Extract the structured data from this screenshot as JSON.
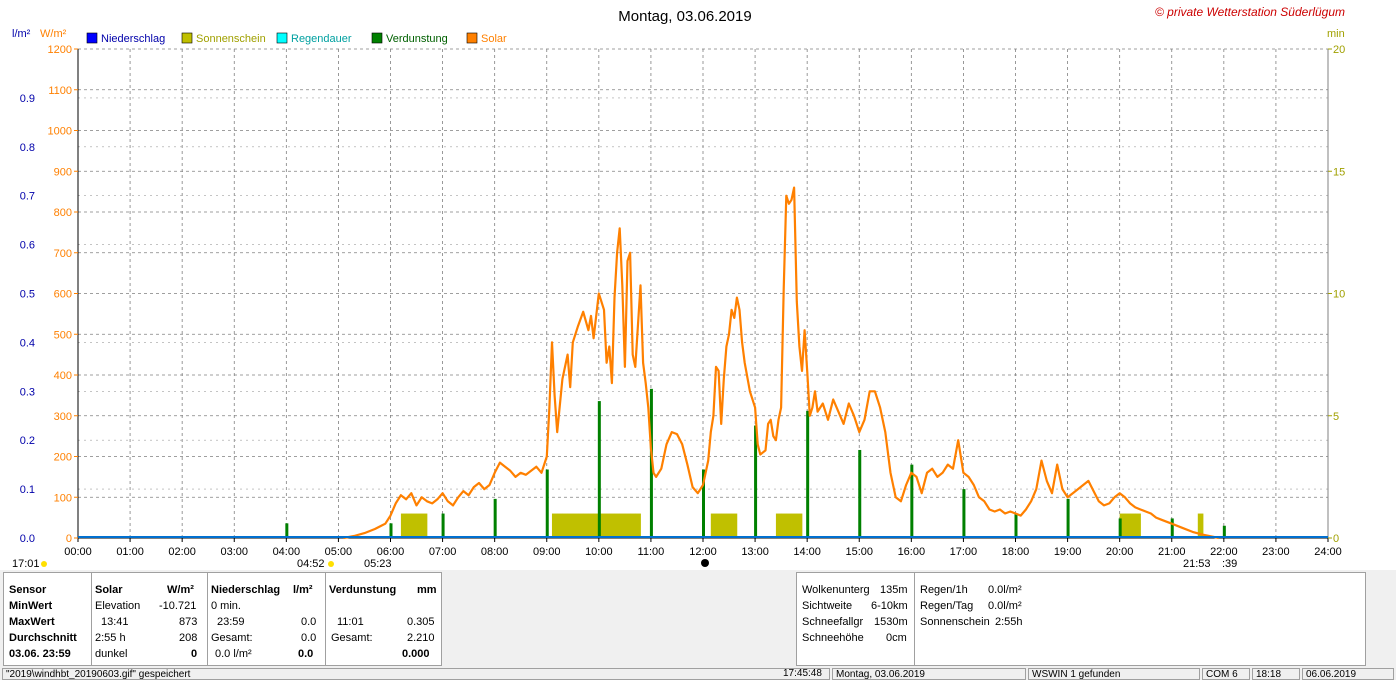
{
  "title": "Montag, 03.06.2019",
  "copyright": "© private Wetterstation Süderlügum",
  "axis_units": {
    "left1": "l/m²",
    "left2": "W/m²",
    "right": "min"
  },
  "legend": [
    {
      "name": "Niederschlag",
      "color": "#0000ff"
    },
    {
      "name": "Sonnenschein",
      "color": "#c0c000"
    },
    {
      "name": "Regendauer",
      "color": "#00ffff"
    },
    {
      "name": "Verdunstung",
      "color": "#008000"
    },
    {
      "name": "Solar",
      "color": "#ff8000"
    }
  ],
  "time_markers": {
    "left": "17:01",
    "sunrise": "04:52",
    "sunrise2": "05:23",
    "sunset": "21:53",
    "sunset2": ":39"
  },
  "chart_data": {
    "type": "line",
    "x_ticks": [
      "00:00",
      "01:00",
      "02:00",
      "03:00",
      "04:00",
      "05:00",
      "06:00",
      "07:00",
      "08:00",
      "09:00",
      "10:00",
      "11:00",
      "12:00",
      "13:00",
      "14:00",
      "15:00",
      "16:00",
      "17:00",
      "18:00",
      "19:00",
      "20:00",
      "21:00",
      "22:00",
      "23:00",
      "24:00"
    ],
    "xlim": [
      0,
      24
    ],
    "y_solar": {
      "label": "W/m²",
      "lim": [
        0,
        1200
      ],
      "ticks": [
        0,
        100,
        200,
        300,
        400,
        500,
        600,
        700,
        800,
        900,
        1000,
        1100,
        1200
      ]
    },
    "y_rain": {
      "label": "l/m²",
      "lim": [
        0,
        1
      ],
      "ticks": [
        "0.0",
        "0.1",
        "0.2",
        "0.3",
        "0.4",
        "0.5",
        "0.6",
        "0.7",
        "0.8",
        "0.9"
      ]
    },
    "y_minutes": {
      "label": "min",
      "lim": [
        0,
        20
      ],
      "ticks": [
        "0",
        "5",
        "10",
        "15",
        "20"
      ]
    },
    "series": [
      {
        "name": "Solar",
        "color": "#ff8000",
        "points": [
          [
            5.1,
            0
          ],
          [
            5.3,
            5
          ],
          [
            5.5,
            12
          ],
          [
            5.7,
            22
          ],
          [
            5.9,
            35
          ],
          [
            6.0,
            55
          ],
          [
            6.1,
            85
          ],
          [
            6.2,
            105
          ],
          [
            6.3,
            95
          ],
          [
            6.4,
            110
          ],
          [
            6.5,
            80
          ],
          [
            6.6,
            100
          ],
          [
            6.7,
            90
          ],
          [
            6.8,
            85
          ],
          [
            6.9,
            95
          ],
          [
            7.0,
            110
          ],
          [
            7.1,
            90
          ],
          [
            7.2,
            80
          ],
          [
            7.3,
            100
          ],
          [
            7.4,
            115
          ],
          [
            7.5,
            105
          ],
          [
            7.6,
            125
          ],
          [
            7.7,
            135
          ],
          [
            7.8,
            120
          ],
          [
            7.9,
            130
          ],
          [
            8.0,
            160
          ],
          [
            8.1,
            185
          ],
          [
            8.2,
            175
          ],
          [
            8.3,
            165
          ],
          [
            8.4,
            150
          ],
          [
            8.5,
            160
          ],
          [
            8.6,
            155
          ],
          [
            8.7,
            165
          ],
          [
            8.8,
            175
          ],
          [
            8.9,
            160
          ],
          [
            9.0,
            200
          ],
          [
            9.05,
            320
          ],
          [
            9.1,
            480
          ],
          [
            9.15,
            350
          ],
          [
            9.2,
            260
          ],
          [
            9.3,
            390
          ],
          [
            9.35,
            420
          ],
          [
            9.4,
            450
          ],
          [
            9.45,
            370
          ],
          [
            9.5,
            480
          ],
          [
            9.6,
            520
          ],
          [
            9.7,
            555
          ],
          [
            9.8,
            510
          ],
          [
            9.85,
            545
          ],
          [
            9.9,
            490
          ],
          [
            10.0,
            600
          ],
          [
            10.05,
            580
          ],
          [
            10.1,
            560
          ],
          [
            10.15,
            430
          ],
          [
            10.2,
            470
          ],
          [
            10.25,
            380
          ],
          [
            10.3,
            590
          ],
          [
            10.35,
            700
          ],
          [
            10.4,
            760
          ],
          [
            10.45,
            620
          ],
          [
            10.5,
            420
          ],
          [
            10.55,
            680
          ],
          [
            10.6,
            700
          ],
          [
            10.65,
            450
          ],
          [
            10.7,
            420
          ],
          [
            10.75,
            520
          ],
          [
            10.8,
            620
          ],
          [
            10.85,
            430
          ],
          [
            10.9,
            380
          ],
          [
            10.95,
            320
          ],
          [
            11.0,
            220
          ],
          [
            11.05,
            160
          ],
          [
            11.1,
            150
          ],
          [
            11.2,
            170
          ],
          [
            11.3,
            230
          ],
          [
            11.4,
            260
          ],
          [
            11.5,
            255
          ],
          [
            11.6,
            230
          ],
          [
            11.7,
            180
          ],
          [
            11.8,
            125
          ],
          [
            11.9,
            110
          ],
          [
            12.0,
            130
          ],
          [
            12.1,
            190
          ],
          [
            12.15,
            260
          ],
          [
            12.2,
            300
          ],
          [
            12.25,
            420
          ],
          [
            12.3,
            410
          ],
          [
            12.35,
            280
          ],
          [
            12.4,
            390
          ],
          [
            12.45,
            470
          ],
          [
            12.5,
            500
          ],
          [
            12.55,
            560
          ],
          [
            12.6,
            540
          ],
          [
            12.65,
            590
          ],
          [
            12.7,
            560
          ],
          [
            12.75,
            480
          ],
          [
            12.8,
            430
          ],
          [
            12.9,
            360
          ],
          [
            13.0,
            320
          ],
          [
            13.05,
            230
          ],
          [
            13.1,
            205
          ],
          [
            13.2,
            215
          ],
          [
            13.25,
            280
          ],
          [
            13.3,
            290
          ],
          [
            13.35,
            250
          ],
          [
            13.4,
            240
          ],
          [
            13.45,
            290
          ],
          [
            13.5,
            320
          ],
          [
            13.55,
            610
          ],
          [
            13.6,
            840
          ],
          [
            13.65,
            820
          ],
          [
            13.7,
            830
          ],
          [
            13.75,
            860
          ],
          [
            13.8,
            580
          ],
          [
            13.85,
            470
          ],
          [
            13.9,
            410
          ],
          [
            13.95,
            510
          ],
          [
            14.0,
            410
          ],
          [
            14.05,
            300
          ],
          [
            14.1,
            320
          ],
          [
            14.15,
            360
          ],
          [
            14.2,
            310
          ],
          [
            14.3,
            330
          ],
          [
            14.4,
            290
          ],
          [
            14.5,
            340
          ],
          [
            14.6,
            310
          ],
          [
            14.7,
            280
          ],
          [
            14.8,
            330
          ],
          [
            14.9,
            300
          ],
          [
            15.0,
            260
          ],
          [
            15.1,
            290
          ],
          [
            15.2,
            360
          ],
          [
            15.3,
            360
          ],
          [
            15.4,
            320
          ],
          [
            15.5,
            260
          ],
          [
            15.6,
            160
          ],
          [
            15.7,
            100
          ],
          [
            15.8,
            90
          ],
          [
            15.9,
            130
          ],
          [
            16.0,
            160
          ],
          [
            16.1,
            150
          ],
          [
            16.2,
            110
          ],
          [
            16.3,
            160
          ],
          [
            16.4,
            170
          ],
          [
            16.5,
            150
          ],
          [
            16.6,
            160
          ],
          [
            16.7,
            180
          ],
          [
            16.8,
            170
          ],
          [
            16.9,
            240
          ],
          [
            17.0,
            160
          ],
          [
            17.1,
            150
          ],
          [
            17.2,
            130
          ],
          [
            17.3,
            100
          ],
          [
            17.4,
            90
          ],
          [
            17.5,
            70
          ],
          [
            17.6,
            65
          ],
          [
            17.7,
            70
          ],
          [
            17.8,
            60
          ],
          [
            17.9,
            65
          ],
          [
            18.0,
            60
          ],
          [
            18.1,
            55
          ],
          [
            18.2,
            70
          ],
          [
            18.3,
            90
          ],
          [
            18.4,
            120
          ],
          [
            18.5,
            190
          ],
          [
            18.6,
            140
          ],
          [
            18.7,
            110
          ],
          [
            18.8,
            180
          ],
          [
            18.9,
            120
          ],
          [
            19.0,
            100
          ],
          [
            19.1,
            110
          ],
          [
            19.2,
            120
          ],
          [
            19.3,
            130
          ],
          [
            19.4,
            140
          ],
          [
            19.5,
            115
          ],
          [
            19.6,
            90
          ],
          [
            19.7,
            80
          ],
          [
            19.8,
            85
          ],
          [
            19.9,
            100
          ],
          [
            20.0,
            110
          ],
          [
            20.1,
            100
          ],
          [
            20.2,
            85
          ],
          [
            20.3,
            75
          ],
          [
            20.4,
            70
          ],
          [
            20.5,
            65
          ],
          [
            20.6,
            60
          ],
          [
            20.7,
            50
          ],
          [
            20.8,
            45
          ],
          [
            20.9,
            40
          ],
          [
            21.0,
            35
          ],
          [
            21.2,
            25
          ],
          [
            21.4,
            15
          ],
          [
            21.6,
            8
          ],
          [
            21.8,
            3
          ],
          [
            21.9,
            0
          ]
        ]
      },
      {
        "name": "Sonnenschein",
        "color": "#c0c000",
        "bars_minutes": [
          [
            6.2,
            1
          ],
          [
            6.3,
            1
          ],
          [
            6.4,
            1
          ],
          [
            6.5,
            1
          ],
          [
            6.6,
            1
          ],
          [
            9.1,
            1
          ],
          [
            9.2,
            1
          ],
          [
            9.3,
            1
          ],
          [
            9.4,
            1
          ],
          [
            9.5,
            1
          ],
          [
            9.6,
            1
          ],
          [
            9.7,
            1
          ],
          [
            9.8,
            1
          ],
          [
            9.9,
            1
          ],
          [
            10.0,
            1
          ],
          [
            10.1,
            1
          ],
          [
            10.2,
            1
          ],
          [
            10.3,
            1
          ],
          [
            10.4,
            1
          ],
          [
            10.5,
            1
          ],
          [
            10.6,
            1
          ],
          [
            10.7,
            1
          ],
          [
            12.15,
            1
          ],
          [
            12.25,
            1
          ],
          [
            12.35,
            1
          ],
          [
            12.45,
            1
          ],
          [
            12.55,
            1
          ],
          [
            13.4,
            1
          ],
          [
            13.5,
            1
          ],
          [
            13.6,
            1
          ],
          [
            13.7,
            1
          ],
          [
            13.8,
            1
          ],
          [
            20.0,
            1
          ],
          [
            20.1,
            1
          ],
          [
            20.2,
            1
          ],
          [
            20.3,
            1
          ],
          [
            21.5,
            1
          ]
        ]
      },
      {
        "name": "Verdunstung",
        "color": "#008000",
        "bars_rel": [
          [
            4.0,
            0.03
          ],
          [
            6.0,
            0.03
          ],
          [
            7.0,
            0.05
          ],
          [
            8.0,
            0.08
          ],
          [
            9.0,
            0.14
          ],
          [
            10.0,
            0.28
          ],
          [
            11.0,
            0.305
          ],
          [
            12.0,
            0.14
          ],
          [
            13.0,
            0.23
          ],
          [
            14.0,
            0.26
          ],
          [
            15.0,
            0.18
          ],
          [
            16.0,
            0.15
          ],
          [
            17.0,
            0.1
          ],
          [
            18.0,
            0.05
          ],
          [
            19.0,
            0.08
          ],
          [
            20.0,
            0.04
          ],
          [
            21.0,
            0.04
          ],
          [
            22.0,
            0.025
          ]
        ]
      }
    ]
  },
  "panel1": {
    "hdr_sensor": "Sensor",
    "hdr_solar": "Solar",
    "hdr_solar_unit": "W/m²",
    "hdr_rain": "Niederschlag",
    "hdr_rain_unit": "l/m²",
    "hdr_evap": "Verdunstung",
    "hdr_evap_unit": "mm",
    "row_min": "MinWert",
    "row_max": "MaxWert",
    "row_avg": "Durchschnitt",
    "row_date": "03.06. 23:59",
    "solar_elev_label": "Elevation",
    "solar_elev_val": "-10.721",
    "solar_max_time": "13:41",
    "solar_max_val": "873",
    "solar_avg_label": "2:55 h",
    "solar_avg_val": "208",
    "solar_dark_label": "dunkel",
    "solar_dark_val": "0",
    "rain_min": "0 min.",
    "rain_max_time": "23:59",
    "rain_max_val": "0.0",
    "rain_total_label": "Gesamt:",
    "rain_total_val": "0.0",
    "rain_now": "0.0 l/m²",
    "rain_now_val": "0.0",
    "evap_max_time": "11:01",
    "evap_max_val": "0.305",
    "evap_total_label": "Gesamt:",
    "evap_total_val": "2.210",
    "evap_now_val": "0.000"
  },
  "panel2": {
    "cloud_label": "Wolkenunterg",
    "cloud_val": "135m",
    "vis_label": "Sichtweite",
    "vis_val": "6-10km",
    "snowfall_label": "Schneefallgr",
    "snowfall_val": "1530m",
    "snowdepth_label": "Schneehöhe",
    "snowdepth_val": "0cm",
    "rain1h_label": "Regen/1h",
    "rain1h_val": "0.0l/m²",
    "rainday_label": "Regen/Tag",
    "rainday_val": "0.0l/m²",
    "sun_label": "Sonnenschein",
    "sun_val": "2:55h"
  },
  "status": {
    "file": "\"2019\\windhbt_20190603.gif\" gespeichert",
    "time": "17:45:48",
    "date": "Montag, 03.06.2019",
    "wswin": "WSWIN 1 gefunden",
    "com": "COM 6",
    "clock": "18:18",
    "cur_date": "06.06.2019"
  }
}
